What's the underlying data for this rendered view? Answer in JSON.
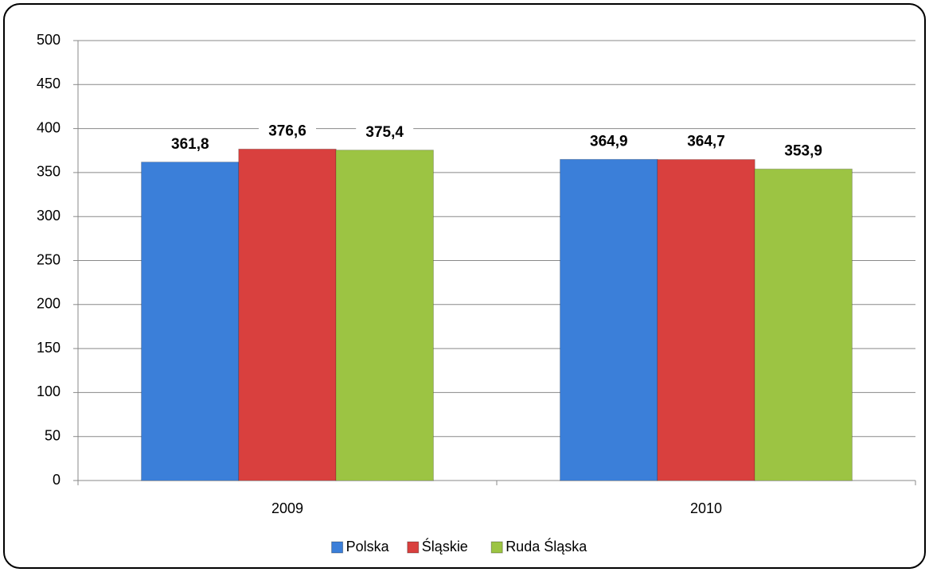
{
  "chart_data": {
    "type": "bar",
    "categories": [
      "2009",
      "2010"
    ],
    "series": [
      {
        "name": "Polska",
        "color": "#3b7fd9",
        "values": [
          361.8,
          364.9
        ],
        "value_labels": [
          "361,8",
          "364,9"
        ]
      },
      {
        "name": "Śląskie",
        "color": "#d9403e",
        "values": [
          376.6,
          364.7
        ],
        "value_labels": [
          "376,6",
          "364,7"
        ]
      },
      {
        "name": "Ruda Śląska",
        "color": "#9cc443",
        "values": [
          375.4,
          353.9
        ],
        "value_labels": [
          "375,4",
          "353,9"
        ]
      }
    ],
    "ylim": [
      0,
      500
    ],
    "yticks": [
      0,
      50,
      100,
      150,
      200,
      250,
      300,
      350,
      400,
      450,
      500
    ],
    "grid": true,
    "legend": "bottom"
  }
}
